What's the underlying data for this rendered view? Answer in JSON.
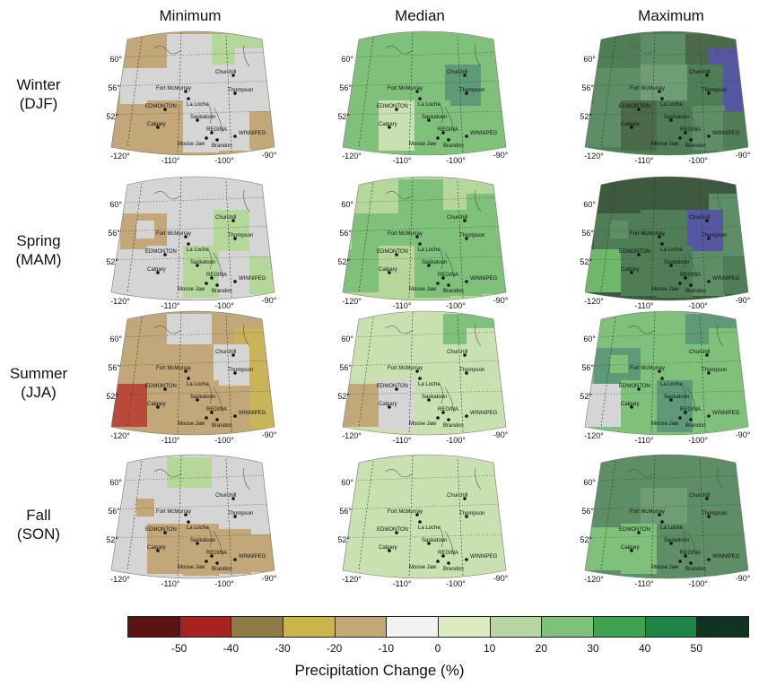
{
  "columns": [
    "Minimum",
    "Median",
    "Maximum"
  ],
  "rows": [
    {
      "season": "Winter",
      "code": "(DJF)"
    },
    {
      "season": "Spring",
      "code": "(MAM)"
    },
    {
      "season": "Summer",
      "code": "(JJA)"
    },
    {
      "season": "Fall",
      "code": "(SON)"
    }
  ],
  "map_labels": {
    "lat_60": "60°",
    "lat_56": "56°",
    "lat_52": "52°",
    "lon_120": "-120°",
    "lon_110": "-110°",
    "lon_100": "-100°",
    "lon_90": "-90°"
  },
  "cities": [
    "Churchill",
    "Thompson",
    "Fort McMurray",
    "La Loche",
    "EDMONTON",
    "Calgary",
    "Saskatoon",
    "REGINA",
    "Moose Jaw",
    "Brandon",
    "WINNIPEG"
  ],
  "panel_fills": [
    [
      [
        "#c2a878",
        "#d5d5d5",
        "#b5d89a",
        "#d5d5d5",
        "#d5d5d5",
        "#d5d5d5",
        "#d5d5d5",
        "#c2a878",
        "#c2a878",
        "#d5d5d5",
        "#d5d5d5",
        "#c2a878",
        "#d5d5d5"
      ],
      [
        "#7fc07a",
        "#7fc07a",
        "#7fc07a",
        "#7fc07a",
        "#7fc07a",
        "#7fc07a",
        "#5e9a78",
        "#7fc07a",
        "#c9e1b0",
        "#7fc07a",
        "#7fc07a",
        "#7fc07a",
        "#7fc07a"
      ],
      [
        "#4e7d56",
        "#5e8e66",
        "#4a6a4a",
        "#5558a0",
        "#5e8e66",
        "#6f9e74",
        "#4e7d56",
        "#5e8e66",
        "#4a6a4a",
        "#4e7d56",
        "#5e8e66",
        "#4e7d56",
        "#5e8e66"
      ]
    ],
    [
      [
        "#d5d5d5",
        "#d5d5d5",
        "#d5d5d5",
        "#d5d5d5",
        "#c2a878",
        "#d5d5d5",
        "#b5d89a",
        "#d5d5d5",
        "#d5d5d5",
        "#b5d89a",
        "#d5d5d5",
        "#b5d89a",
        "#d5d5d5"
      ],
      [
        "#b5d89a",
        "#7fc07a",
        "#b5d89a",
        "#7fc07a",
        "#7fc07a",
        "#7fc07a",
        "#7fc07a",
        "#7fc07a",
        "#b5d89a",
        "#7fc07a",
        "#7fc07a",
        "#7fc07a",
        "#7fc07a"
      ],
      [
        "#3e5a3e",
        "#3e5a3e",
        "#3e5a3e",
        "#5e8e66",
        "#4e7d56",
        "#4e7d56",
        "#5558a0",
        "#6fb86a",
        "#4e7d56",
        "#4e7d56",
        "#5e8e66",
        "#4e7d56",
        "#5e8e66"
      ]
    ],
    [
      [
        "#c2a878",
        "#d5d5d5",
        "#c2a878",
        "#c9b45a",
        "#c2a878",
        "#c2a878",
        "#d5d5d5",
        "#b94a3a",
        "#c2a878",
        "#c2a878",
        "#c2a878",
        "#c9b45a",
        "#c2a878"
      ],
      [
        "#c9e1b0",
        "#c9e1b0",
        "#7fc07a",
        "#c9e1b0",
        "#c9e1b0",
        "#c9e1b0",
        "#c9e1b0",
        "#c2a878",
        "#d5d5d5",
        "#c9e1b0",
        "#c9e1b0",
        "#c9e1b0",
        "#c9e1b0"
      ],
      [
        "#7fc07a",
        "#7fc07a",
        "#5e9a78",
        "#7fc07a",
        "#5e9a78",
        "#7fc07a",
        "#7fc07a",
        "#d5d5d5",
        "#7fc07a",
        "#5e9a78",
        "#7fc07a",
        "#7fc07a",
        "#7fc07a"
      ]
    ],
    [
      [
        "#d5d5d5",
        "#b5d89a",
        "#d5d5d5",
        "#d5d5d5",
        "#d5d5d5",
        "#d5d5d5",
        "#d5d5d5",
        "#d5d5d5",
        "#c2a878",
        "#c2a878",
        "#c2a878",
        "#c2a878",
        "#c2a878"
      ],
      [
        "#c9e1b0",
        "#c9e1b0",
        "#c9e1b0",
        "#c9e1b0",
        "#c9e1b0",
        "#c9e1b0",
        "#c9e1b0",
        "#c9e1b0",
        "#c9e1b0",
        "#c9e1b0",
        "#c9e1b0",
        "#c9e1b0",
        "#c9e1b0"
      ],
      [
        "#5e8e66",
        "#5e8e66",
        "#5e8e66",
        "#5e8e66",
        "#5e8e66",
        "#6f9e74",
        "#5e8e66",
        "#7fc07a",
        "#7fc07a",
        "#5e8e66",
        "#5e8e66",
        "#5e8e66",
        "#5e8e66"
      ]
    ]
  ],
  "legend": {
    "colors": [
      "#5c1212",
      "#a82222",
      "#8f7b48",
      "#c9b548",
      "#c2a878",
      "#f2f2f2",
      "#dcebc0",
      "#b7d6a2",
      "#7ec27a",
      "#3ea24e",
      "#1f8546",
      "#11331f"
    ],
    "ticks": [
      "-50",
      "-40",
      "-30",
      "-20",
      "-10",
      "0",
      "10",
      "20",
      "30",
      "40",
      "50"
    ],
    "title": "Precipitation Change (%)"
  }
}
